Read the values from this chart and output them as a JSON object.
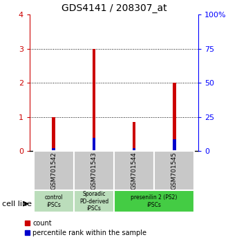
{
  "title": "GDS4141 / 208307_at",
  "samples": [
    "GSM701542",
    "GSM701543",
    "GSM701544",
    "GSM701545"
  ],
  "red_values": [
    1.0,
    3.0,
    0.85,
    2.0
  ],
  "blue_values": [
    0.09,
    0.4,
    0.09,
    0.35
  ],
  "red_color": "#cc0000",
  "blue_color": "#0000cc",
  "ylim_left": [
    0,
    4
  ],
  "ylim_right": [
    0,
    100
  ],
  "yticks_left": [
    0,
    1,
    2,
    3,
    4
  ],
  "yticks_right": [
    0,
    25,
    50,
    75,
    100
  ],
  "ytick_labels_right": [
    "0",
    "25",
    "50",
    "75",
    "100%"
  ],
  "cell_line_label": "cell line",
  "legend_count": "count",
  "legend_percentile": "percentile rank within the sample",
  "bar_width": 0.08,
  "bg_color_sample": "#c8c8c8",
  "group_spans": [
    [
      0,
      1,
      "control\niPSCs",
      "#bbddbb"
    ],
    [
      1,
      2,
      "Sporadic\nPD-derived\niPSCs",
      "#bbddbb"
    ],
    [
      2,
      4,
      "presenilin 2 (PS2)\niPSCs",
      "#44cc44"
    ]
  ]
}
